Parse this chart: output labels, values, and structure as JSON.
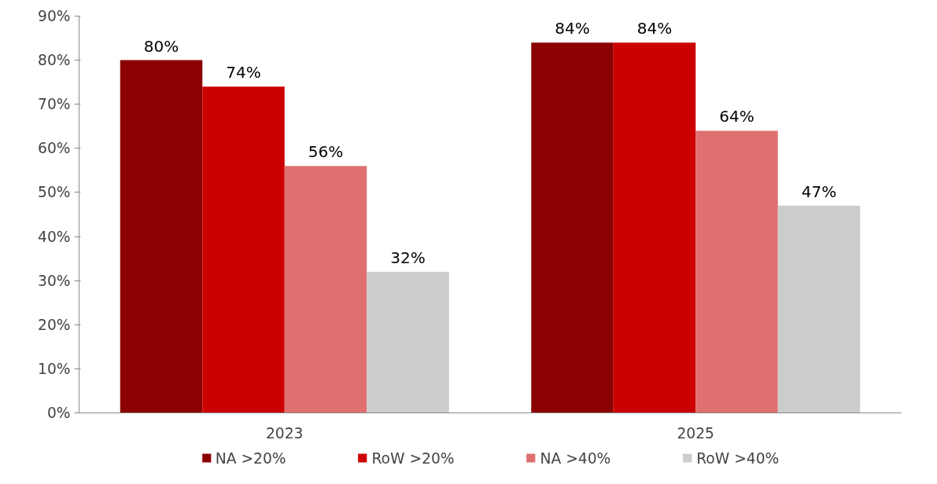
{
  "chart_data": {
    "type": "bar",
    "categories": [
      "2023",
      "2025"
    ],
    "series": [
      {
        "name": "NA >20%",
        "color": "#8b0000",
        "values": [
          80,
          84
        ],
        "value_labels": [
          "80%",
          "84%"
        ]
      },
      {
        "name": "RoW >20%",
        "color": "#cc0000",
        "values": [
          74,
          84
        ],
        "value_labels": [
          "74%",
          "84%"
        ]
      },
      {
        "name": "NA >40%",
        "color": "#e07070",
        "values": [
          56,
          64
        ],
        "value_labels": [
          "56%",
          "64%"
        ]
      },
      {
        "name": "RoW >40%",
        "color": "#cccccc",
        "values": [
          32,
          47
        ],
        "value_labels": [
          "32%",
          "47%"
        ]
      }
    ],
    "ylim": [
      0,
      90
    ],
    "yticks": [
      {
        "value": 0,
        "label": "0%"
      },
      {
        "value": 10,
        "label": "10%"
      },
      {
        "value": 20,
        "label": "20%"
      },
      {
        "value": 30,
        "label": "30%"
      },
      {
        "value": 40,
        "label": "40%"
      },
      {
        "value": 50,
        "label": "50%"
      },
      {
        "value": 60,
        "label": "60%"
      },
      {
        "value": 70,
        "label": "70%"
      },
      {
        "value": 80,
        "label": "80%"
      },
      {
        "value": 90,
        "label": "90%"
      }
    ],
    "grid": false,
    "legend": "bottom"
  }
}
